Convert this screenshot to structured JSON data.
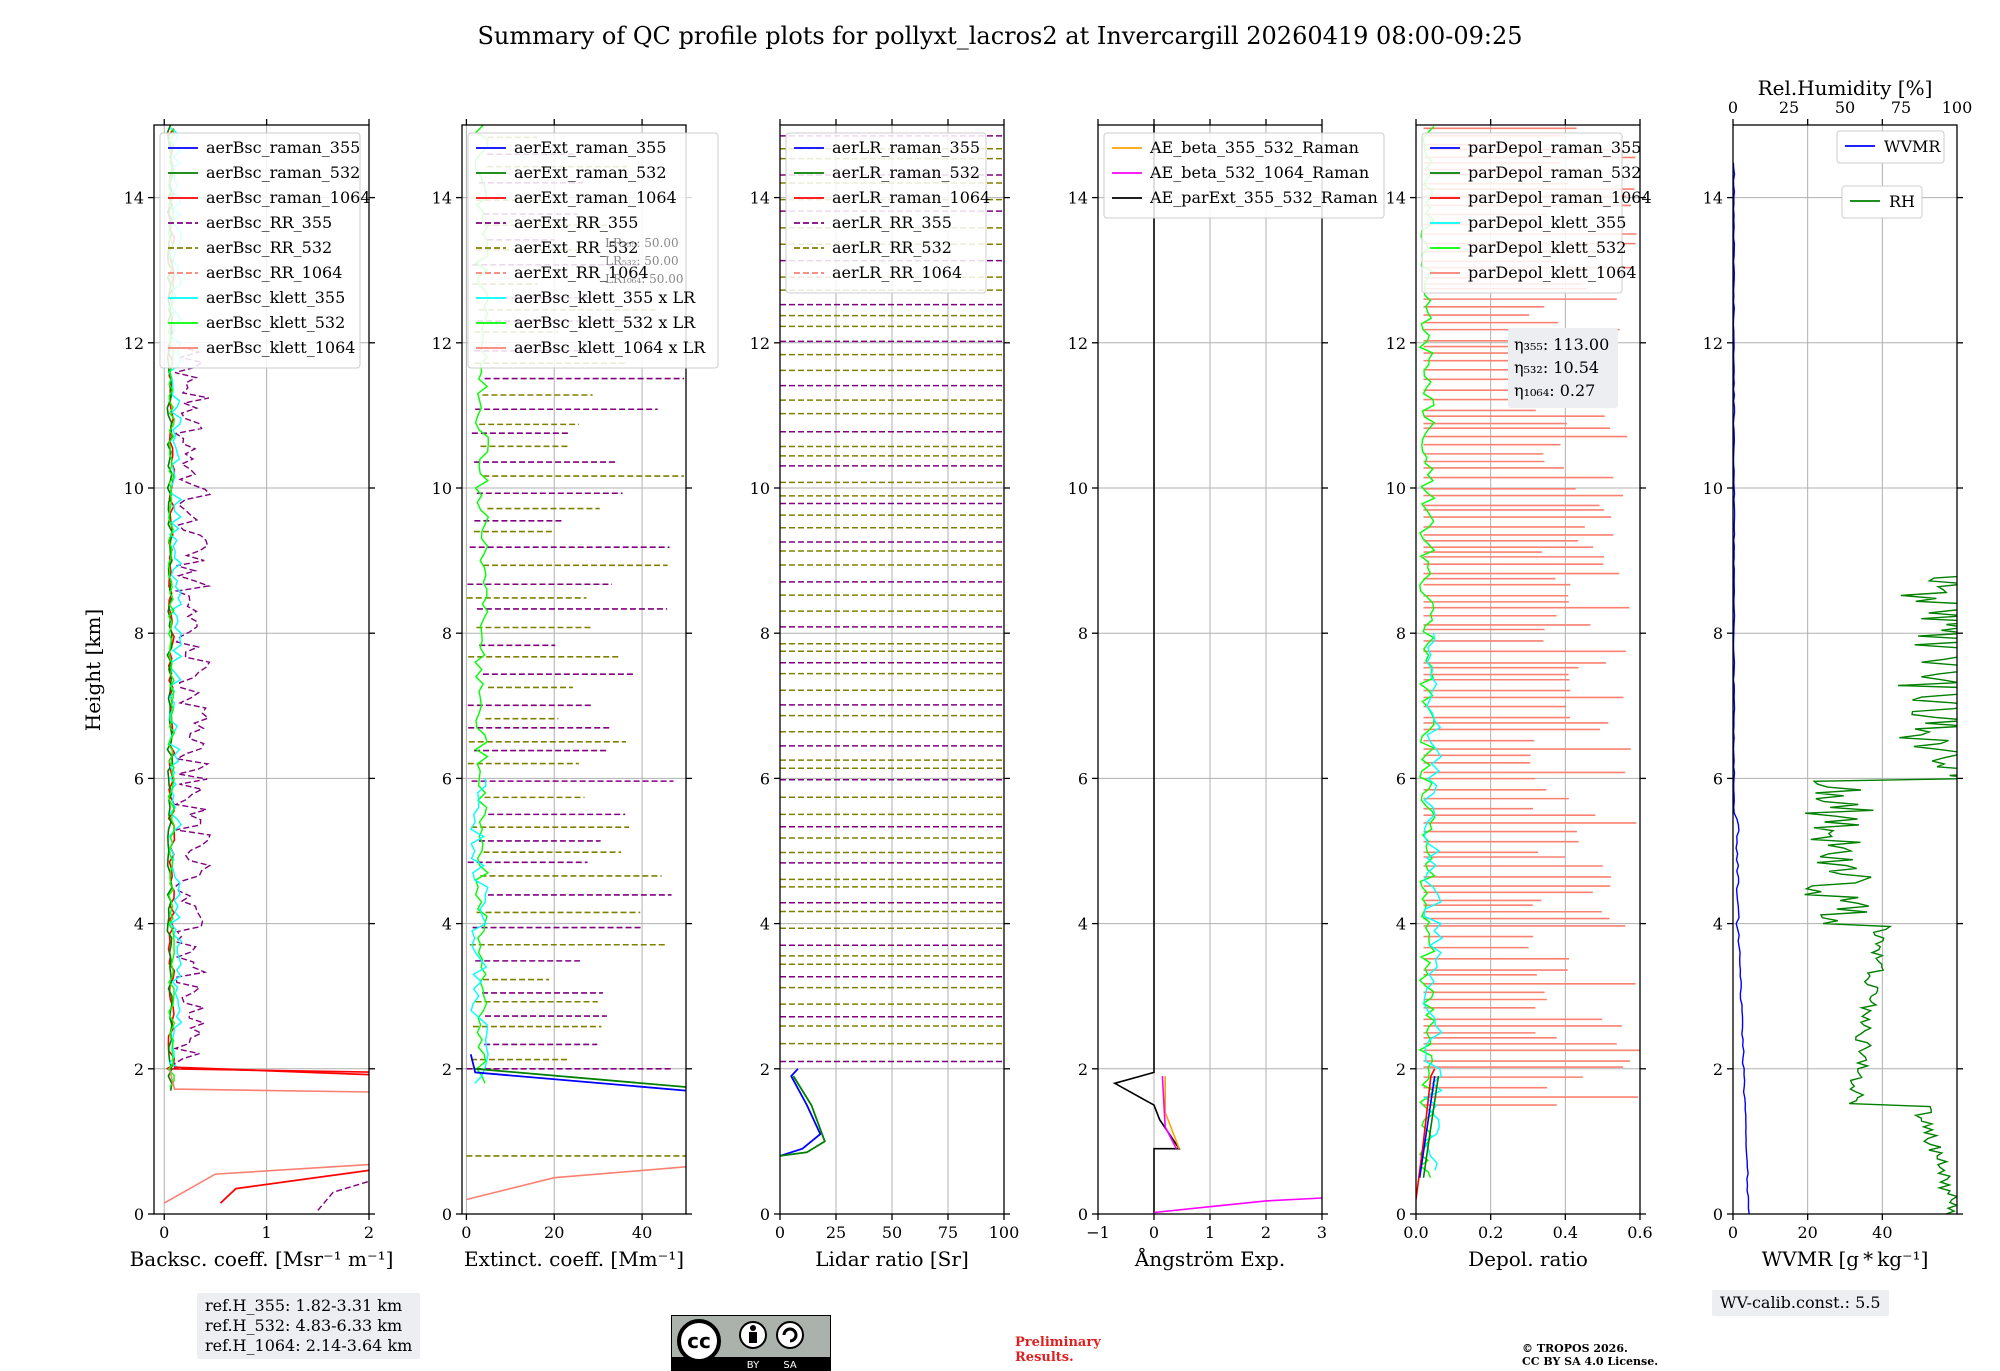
{
  "title": "Summary of QC profile plots for pollyxt_lacros2 at Invercargill 20260419 08:00-09:25",
  "shared_ylabel": "Height [km]",
  "chart_data": [
    {
      "type": "line",
      "xlabel": "Backsc. coeff. [Msr⁻¹ m⁻¹]",
      "xlim": [
        -0.1,
        2.0
      ],
      "xticks": [
        "0",
        "1",
        "2"
      ],
      "ylim": [
        0,
        15
      ],
      "yticks": [
        "0",
        "2",
        "4",
        "6",
        "8",
        "10",
        "12",
        "14"
      ],
      "grid": true,
      "legend": [
        "aerBsc_raman_355",
        "aerBsc_raman_532",
        "aerBsc_raman_1064",
        "aerBsc_RR_355",
        "aerBsc_RR_532",
        "aerBsc_RR_1064",
        "aerBsc_klett_355",
        "aerBsc_klett_532",
        "aerBsc_klett_1064"
      ],
      "legend_location": "upper-left"
    },
    {
      "type": "line",
      "xlabel": "Extinct. coeff. [Mm⁻¹]",
      "xlim": [
        -1,
        50
      ],
      "xticks": [
        "0",
        "20",
        "40"
      ],
      "ylim": [
        0,
        15
      ],
      "yticks": [
        "0",
        "2",
        "4",
        "6",
        "8",
        "10",
        "12",
        "14"
      ],
      "grid": true,
      "legend": [
        "aerExt_raman_355",
        "aerExt_raman_532",
        "aerExt_raman_1064",
        "aerExt_RR_355",
        "aerExt_RR_532",
        "aerExt_RR_1064",
        "aerBsc_klett_355 x LR",
        "aerBsc_klett_532 x LR",
        "aerBsc_klett_1064 x LR"
      ],
      "legend_location": "upper-left",
      "annotations": [
        "LR355: 50.00",
        "LR532: 50.00",
        "LR1064: 50.00"
      ]
    },
    {
      "type": "line",
      "xlabel": "Lidar ratio [Sr]",
      "xlim": [
        0,
        100
      ],
      "xticks": [
        "0",
        "25",
        "50",
        "75",
        "100"
      ],
      "ylim": [
        0,
        15
      ],
      "yticks": [
        "0",
        "2",
        "4",
        "6",
        "8",
        "10",
        "12",
        "14"
      ],
      "grid": true,
      "legend": [
        "aerLR_raman_355",
        "aerLR_raman_532",
        "aerLR_raman_1064",
        "aerLR_RR_355",
        "aerLR_RR_532",
        "aerLR_RR_1064"
      ],
      "legend_location": "upper-left"
    },
    {
      "type": "line",
      "xlabel": "Ångström Exp.",
      "xlim": [
        -1,
        3
      ],
      "xticks": [
        "−1",
        "0",
        "1",
        "2",
        "3"
      ],
      "ylim": [
        0,
        15
      ],
      "yticks": [
        "0",
        "2",
        "4",
        "6",
        "8",
        "10",
        "12",
        "14"
      ],
      "grid": true,
      "legend": [
        "AE_beta_355_532_Raman",
        "AE_beta_532_1064_Raman",
        "AE_parExt_355_532_Raman"
      ],
      "legend_location": "upper-left"
    },
    {
      "type": "line",
      "xlabel": "Depol. ratio",
      "xlim": [
        0,
        0.6
      ],
      "xticks": [
        "0.0",
        "0.2",
        "0.4",
        "0.6"
      ],
      "ylim": [
        0,
        15
      ],
      "yticks": [
        "0",
        "2",
        "4",
        "6",
        "8",
        "10",
        "12",
        "14"
      ],
      "grid": true,
      "legend": [
        "parDepol_raman_355",
        "parDepol_raman_532",
        "parDepol_raman_1064",
        "parDepol_klett_355",
        "parDepol_klett_532",
        "parDepol_klett_1064"
      ],
      "legend_location": "upper-left",
      "annotations": [
        "η355: 113.00",
        "η532: 10.54",
        "η1064: 0.27"
      ]
    },
    {
      "type": "line",
      "xlabel": "WVMR [g * kg⁻¹]",
      "xlim": [
        0,
        60
      ],
      "xticks": [
        "0",
        "20",
        "40"
      ],
      "top_xlabel": "Rel.Humidity [%]",
      "top_xlim": [
        0,
        100
      ],
      "top_xticks": [
        "0",
        "25",
        "50",
        "75",
        "100"
      ],
      "ylim": [
        0,
        15
      ],
      "yticks": [
        "0",
        "2",
        "4",
        "6",
        "8",
        "10",
        "12",
        "14"
      ],
      "grid": true,
      "legend": [
        "WVMR",
        "RH"
      ],
      "legend_location": "upper-right"
    }
  ],
  "panel_annotations": {
    "lr355_label": "LR₃₅₅: 50.00",
    "lr532_label": "LR₅₃₂: 50.00",
    "lr1064_label": "LR₁₀₆₄: 50.00",
    "eta355": "η₃₅₅: 113.00",
    "eta532": "η₅₃₂: 10.54",
    "eta1064": "η₁₀₆₄: 0.27"
  },
  "refH": {
    "line1": "ref.H_355: 1.82-3.31 km",
    "line2": "ref.H_532: 4.83-6.33 km",
    "line3": "ref.H_1064: 2.14-3.64 km"
  },
  "wv_calib": "WV-calib.const.: 5.5",
  "license_badge": {
    "cc": "cc",
    "by": "BY",
    "sa": "SA"
  },
  "preliminary": {
    "line1": "Preliminary",
    "line2": "Results."
  },
  "copyright": {
    "line1": "© TROPOS 2026.",
    "line2": "CC BY SA 4.0 License."
  },
  "colors": {
    "blue": "#0000ff",
    "green": "#008000",
    "red": "#ff0000",
    "purple": "#800080",
    "olive": "#808000",
    "salmon": "#fa8072",
    "cyan": "#00ffff",
    "lime": "#00ff00",
    "orange": "#ffa500",
    "magenta": "#ff00ff",
    "black": "#000000",
    "grid": "#b0b0b0"
  }
}
